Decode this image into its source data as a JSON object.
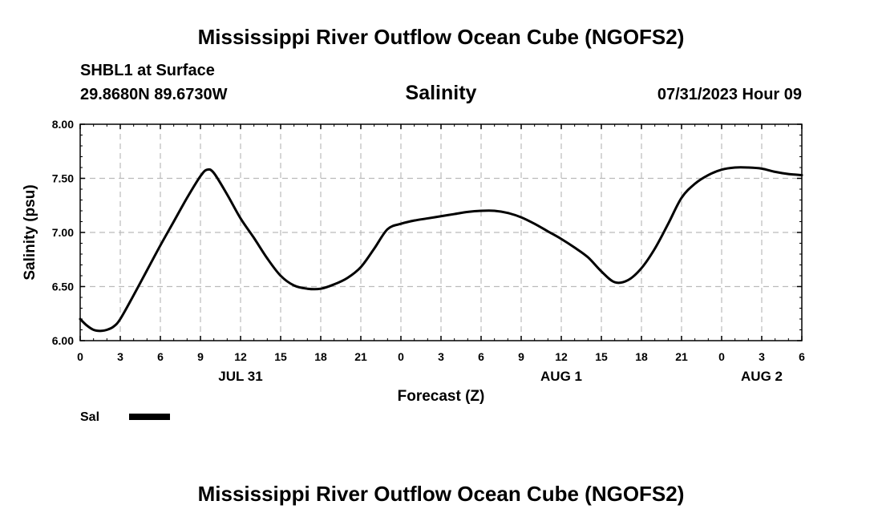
{
  "header": {
    "title": "Mississippi River Outflow Ocean Cube (NGOFS2)",
    "station": "SHBL1 at Surface",
    "coords": "29.8680N  89.6730W",
    "subtitle": "Salinity",
    "timestamp": "07/31/2023 Hour 09"
  },
  "footer": {
    "title": "Mississippi River Outflow Ocean Cube (NGOFS2)"
  },
  "chart_data": {
    "type": "line",
    "title": "Salinity",
    "xlabel": "Forecast (Z)",
    "ylabel": "Salinity (psu)",
    "xlim": [
      0,
      54
    ],
    "ylim": [
      6.0,
      8.0
    ],
    "grid": true,
    "x_tick_values": [
      0,
      3,
      6,
      9,
      12,
      15,
      18,
      21,
      24,
      27,
      30,
      33,
      36,
      39,
      42,
      45,
      48,
      51,
      54
    ],
    "x_tick_labels": [
      "0",
      "3",
      "6",
      "9",
      "12",
      "15",
      "18",
      "21",
      "0",
      "3",
      "6",
      "9",
      "12",
      "15",
      "18",
      "21",
      "0",
      "3",
      "6"
    ],
    "y_tick_values": [
      6.0,
      6.5,
      7.0,
      7.5,
      8.0
    ],
    "y_tick_labels": [
      "6.00",
      "6.50",
      "7.00",
      "7.50",
      "8.00"
    ],
    "date_labels": [
      {
        "x": 12,
        "label": "JUL 31"
      },
      {
        "x": 36,
        "label": "AUG 1"
      },
      {
        "x": 51,
        "label": "AUG 2"
      }
    ],
    "legend": [
      {
        "name": "Sal",
        "color": "#000000"
      }
    ],
    "series": [
      {
        "name": "Sal",
        "color": "#000000",
        "x": [
          0,
          0.5,
          1,
          1.5,
          2,
          2.5,
          3,
          4,
          5,
          6,
          7,
          8,
          9,
          9.5,
          10,
          11,
          12,
          13,
          14,
          15,
          16,
          17,
          18,
          19,
          20,
          21,
          22,
          23,
          24,
          25,
          26,
          27,
          28,
          29,
          30,
          31,
          32,
          33,
          34,
          35,
          36,
          37,
          38,
          39,
          40,
          41,
          42,
          43,
          44,
          45,
          46,
          47,
          48,
          49,
          50,
          51,
          52,
          53,
          54
        ],
        "y": [
          6.2,
          6.14,
          6.1,
          6.09,
          6.1,
          6.13,
          6.2,
          6.42,
          6.65,
          6.88,
          7.1,
          7.32,
          7.52,
          7.58,
          7.55,
          7.35,
          7.13,
          6.95,
          6.76,
          6.6,
          6.51,
          6.48,
          6.48,
          6.52,
          6.58,
          6.68,
          6.85,
          7.03,
          7.08,
          7.11,
          7.13,
          7.15,
          7.17,
          7.19,
          7.2,
          7.2,
          7.18,
          7.14,
          7.08,
          7.01,
          6.94,
          6.86,
          6.77,
          6.64,
          6.54,
          6.56,
          6.67,
          6.85,
          7.08,
          7.32,
          7.45,
          7.53,
          7.58,
          7.6,
          7.6,
          7.59,
          7.56,
          7.54,
          7.53
        ]
      }
    ]
  }
}
